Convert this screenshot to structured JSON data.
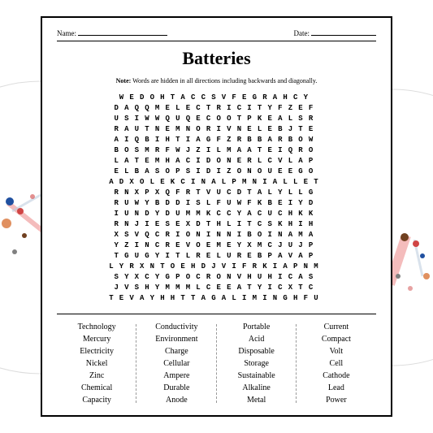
{
  "header": {
    "name_label": "Name:",
    "date_label": "Date:"
  },
  "title": "Batteries",
  "note_prefix": "Note:",
  "note_text": " Words are hidden in all directions including backwards and diagonally.",
  "grid_rows": [
    "WEDOHTACCSVFEGRAHCY",
    "DAQQMELECTRICITYFZEF",
    "USIWWQUQECOOTPKEALSR",
    "RAUTNEMNORIVNELEBJTE",
    "AIQBIHTIAGFZRBBARBOW",
    "BOSMRFWJZILMAATEIQRO",
    "LATEMHACIDONERLCVLAP",
    "ELBASOPSIDIZONOUEEGO",
    "ADXOLEKCINALPMNIALLET",
    "RNXPXQFRTVUCDTALYLLG",
    "RUWYBDDISLFUWFKBEIYD",
    "IUNDYDUMMKCCYACUCHKK",
    "RNJIESEXDTHLITCSKHIH",
    "XSVQCRIONINNIBOINAMA",
    "YZINCREVOEMEYXMCJUJP",
    "TGUGYITLRELUREBPAVAP",
    "LYRXNTOEHDJVIFRKIAPNM",
    "SYXCYGPOCRONVHUHICAS",
    "JVSHYMMMLCEEATYICXTC",
    "TEVAYHHTTAGALIMINGHFU"
  ],
  "word_columns": [
    [
      "Technology",
      "Mercury",
      "Electricity",
      "Nickel",
      "Zinc",
      "Chemical",
      "Capacity"
    ],
    [
      "Conductivity",
      "Environment",
      "Charge",
      "Cellular",
      "Ampere",
      "Durable",
      "Anode"
    ],
    [
      "Portable",
      "Acid",
      "Disposable",
      "Storage",
      "Sustainable",
      "Alkaline",
      "Metal"
    ],
    [
      "Current",
      "Compact",
      "Volt",
      "Cell",
      "Cathode",
      "Lead",
      "Power"
    ]
  ],
  "decoration": {
    "circle_stroke": "#cccccc",
    "dot_colors": [
      "#d04545",
      "#2050a0",
      "#e09060",
      "#704020",
      "#808080"
    ],
    "line_colors": [
      "#f0a0a0",
      "#c0d0e0",
      "#f0c0a0"
    ]
  }
}
